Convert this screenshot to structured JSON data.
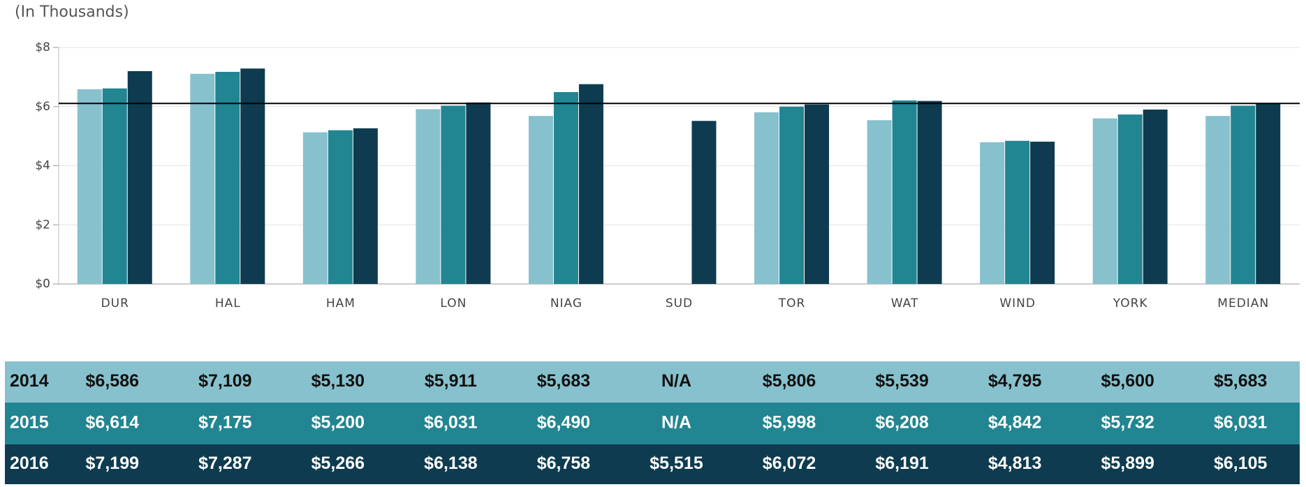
{
  "chart_data": {
    "type": "bar",
    "subtitle": "(In Thousands)",
    "categories": [
      "DUR",
      "HAL",
      "HAM",
      "LON",
      "NIAG",
      "SUD",
      "TOR",
      "WAT",
      "WIND",
      "YORK",
      "MEDIAN"
    ],
    "series": [
      {
        "name": "2014",
        "color": "#87c1cd",
        "text_color": "#111111",
        "values": [
          6.586,
          7.109,
          5.13,
          5.911,
          5.683,
          null,
          5.806,
          5.539,
          4.795,
          5.6,
          5.683
        ],
        "value_labels": [
          "$6,586",
          "$7,109",
          "$5,130",
          "$5,911",
          "$5,683",
          "N/A",
          "$5,806",
          "$5,539",
          "$4,795",
          "$5,600",
          "$5,683"
        ]
      },
      {
        "name": "2015",
        "color": "#218592",
        "text_color": "#ffffff",
        "values": [
          6.614,
          7.175,
          5.2,
          6.031,
          6.49,
          null,
          5.998,
          6.208,
          4.842,
          5.732,
          6.031
        ],
        "value_labels": [
          "$6,614",
          "$7,175",
          "$5,200",
          "$6,031",
          "$6,490",
          "N/A",
          "$5,998",
          "$6,208",
          "$4,842",
          "$5,732",
          "$6,031"
        ]
      },
      {
        "name": "2016",
        "color": "#0e3b4f",
        "text_color": "#ffffff",
        "values": [
          7.199,
          7.287,
          5.266,
          6.138,
          6.758,
          5.515,
          6.072,
          6.191,
          4.813,
          5.899,
          6.105
        ],
        "value_labels": [
          "$7,199",
          "$7,287",
          "$5,266",
          "$6,138",
          "$6,758",
          "$5,515",
          "$6,072",
          "$6,191",
          "$4,813",
          "$5,899",
          "$6,105"
        ]
      }
    ],
    "ylim": [
      0,
      8
    ],
    "yticks": [
      {
        "value": 0,
        "label": "$0"
      },
      {
        "value": 2,
        "label": "$2"
      },
      {
        "value": 4,
        "label": "$4"
      },
      {
        "value": 6,
        "label": "$6"
      },
      {
        "value": 8,
        "label": "$8"
      }
    ],
    "grid": true,
    "reference_line": 6.105
  }
}
